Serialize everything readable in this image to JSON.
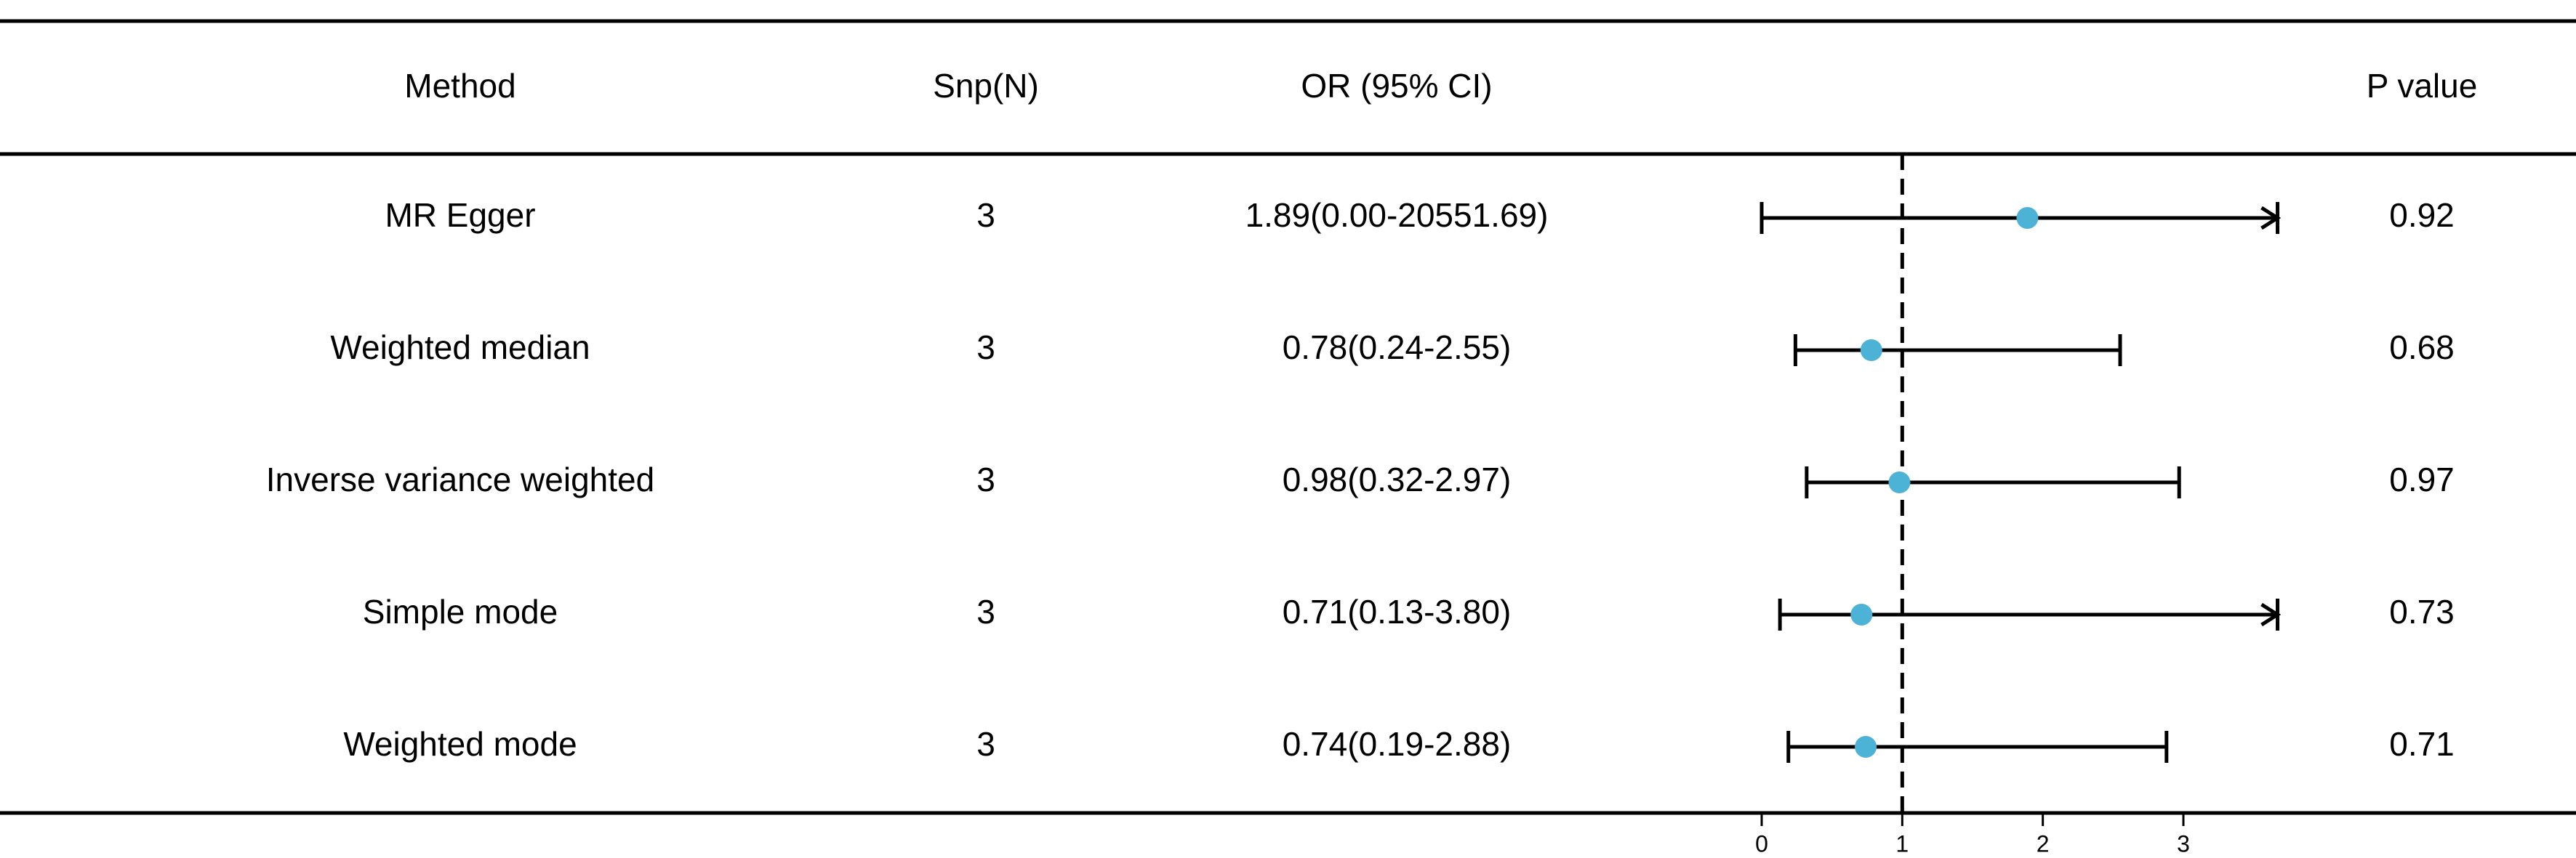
{
  "chart_data": {
    "type": "forest",
    "columns": [
      "Method",
      "Snp(N)",
      "OR (95% CI)",
      "P value"
    ],
    "categories": [
      "MR Egger",
      "Weighted median",
      "Inverse variance weighted",
      "Simple mode",
      "Weighted mode"
    ],
    "snp": [
      3,
      3,
      3,
      3,
      3
    ],
    "values": [
      1.89,
      0.78,
      0.98,
      0.71,
      0.74
    ],
    "lower": [
      0.0,
      0.24,
      0.32,
      0.13,
      0.19
    ],
    "upper": [
      20551.69,
      2.55,
      2.97,
      3.8,
      2.88
    ],
    "value_labels": [
      "1.89(0.00-20551.69)",
      "0.78(0.24-2.55)",
      "0.98(0.32-2.97)",
      "0.71(0.13-3.80)",
      "0.74(0.19-2.88)"
    ],
    "p_values": [
      0.92,
      0.68,
      0.97,
      0.73,
      0.71
    ],
    "color": "#4db3d6",
    "reference": 1,
    "xlim": [
      0,
      3.67
    ],
    "xticks": [
      0,
      1,
      2,
      3
    ]
  }
}
